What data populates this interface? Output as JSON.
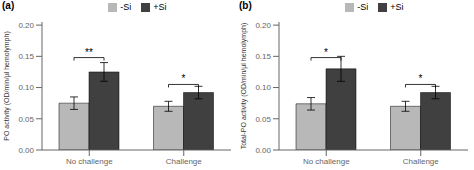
{
  "chart_data": [
    {
      "type": "bar",
      "title": "(a)",
      "y_label": "PO activity (OD/min/µl hemolymph)",
      "categories": [
        "No challenge",
        "Challenge"
      ],
      "series": [
        {
          "name": "-Si",
          "color": "#b8b8b8",
          "values": [
            0.075,
            0.07
          ],
          "errors": [
            0.01,
            0.008
          ]
        },
        {
          "name": "+Si",
          "color": "#404040",
          "values": [
            0.125,
            0.092
          ],
          "errors": [
            0.015,
            0.01
          ]
        }
      ],
      "annotations": [
        {
          "text": "**",
          "x": "No challenge",
          "y": 0.148
        },
        {
          "text": "*",
          "x": "Challenge",
          "y": 0.105
        }
      ],
      "ylim": [
        0.0,
        0.205
      ],
      "yticks": [
        {
          "value": 0,
          "label": "0.00"
        },
        0.05,
        {
          "value": 0.1,
          "label": "0.10"
        },
        0.15,
        {
          "value": 0.2,
          "label": "0.20"
        }
      ],
      "legend": "top",
      "grid": false
    },
    {
      "type": "bar",
      "title": "(b)",
      "y_label": "Total-PO activity (OD/min/µl hemolymph)",
      "categories": [
        "No challenge",
        "Challenge"
      ],
      "series": [
        {
          "name": "-Si",
          "color": "#b8b8b8",
          "values": [
            0.074,
            0.07
          ],
          "errors": [
            0.01,
            0.008
          ]
        },
        {
          "name": "+Si",
          "color": "#404040",
          "values": [
            0.13,
            0.092
          ],
          "errors": [
            0.02,
            0.01
          ]
        }
      ],
      "annotations": [
        {
          "text": "*",
          "x": "No challenge",
          "y": 0.148
        },
        {
          "text": "*",
          "x": "Challenge",
          "y": 0.105
        }
      ],
      "ylim": [
        0.0,
        0.205
      ],
      "yticks": [
        {
          "value": 0,
          "label": "0.00"
        },
        0.05,
        {
          "value": 0.1,
          "label": "0.10"
        },
        0.15,
        {
          "value": 0.2,
          "label": "0.20"
        }
      ],
      "legend": "top",
      "grid": false
    }
  ]
}
